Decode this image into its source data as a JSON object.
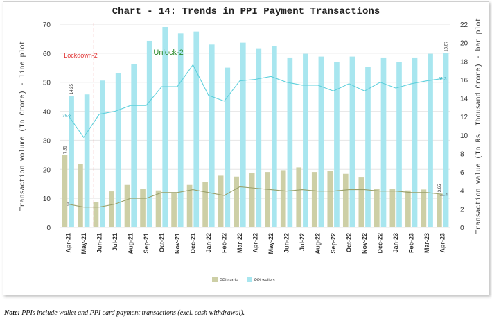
{
  "chart_data": {
    "type": "bar",
    "title": "Chart - 14: Trends in PPI Payment Transactions",
    "ylabel_left": "Transaction volume (In Crore) - line plot",
    "ylabel_right": "Transaction value (In Rs. Thousand Crore) - bar plot",
    "ylim_left": [
      0,
      70
    ],
    "ylim_right": [
      0,
      22
    ],
    "left_ticks": [
      "0",
      "10",
      "20",
      "30",
      "40",
      "50",
      "60",
      "70"
    ],
    "right_ticks": [
      "0",
      "2",
      "4",
      "6",
      "8",
      "10",
      "12",
      "14",
      "16",
      "18",
      "20",
      "22"
    ],
    "categories": [
      "Apr-21",
      "May-21",
      "Jun-21",
      "Jul-21",
      "Aug-21",
      "Sep-21",
      "Oct-21",
      "Nov-21",
      "Dec-21",
      "Jan-22",
      "Feb-22",
      "Mar-22",
      "Apr-22",
      "May-22",
      "Jun-22",
      "Jul-22",
      "Aug-22",
      "Sep-22",
      "Oct-22",
      "Nov-22",
      "Dec-22",
      "Jan-23",
      "Feb-23",
      "Mar-23",
      "Apr-23"
    ],
    "bar_series": [
      {
        "name": "PPI cards",
        "color": "#cdcfa6",
        "values": [
          7.81,
          6.9,
          2.75,
          3.9,
          4.6,
          4.2,
          4.0,
          3.8,
          4.6,
          4.9,
          5.6,
          5.5,
          5.9,
          6.0,
          6.2,
          6.5,
          6.0,
          6.1,
          5.8,
          5.4,
          4.2,
          4.2,
          4.0,
          4.1,
          3.65
        ]
      },
      {
        "name": "PPI wallets",
        "color": "#a8e6ef",
        "values": [
          14.25,
          14.4,
          15.9,
          16.7,
          17.7,
          20.2,
          21.7,
          21.0,
          21.2,
          19.8,
          17.3,
          20.0,
          19.4,
          19.6,
          18.4,
          18.8,
          18.5,
          17.9,
          18.5,
          17.4,
          18.4,
          17.9,
          18.4,
          18.8,
          18.87
        ]
      }
    ],
    "line_series": [
      {
        "name": "PPI wallets",
        "color": "#5fd0dc",
        "values": [
          38.6,
          31.0,
          39.0,
          40.0,
          42.0,
          42.0,
          48.5,
          48.5,
          56.0,
          45.5,
          43.5,
          50.5,
          51.0,
          52.0,
          50.0,
          49.0,
          49.0,
          47.0,
          49.5,
          47.0,
          50.0,
          48.0,
          49.5,
          50.5,
          51.3
        ]
      },
      {
        "name": "PPI cards",
        "color": "#9aa06a",
        "values": [
          8.0,
          7.0,
          7.0,
          8.0,
          10.0,
          10.0,
          12.0,
          12.0,
          13.0,
          12.0,
          11.0,
          14.0,
          13.5,
          13.0,
          12.5,
          13.0,
          12.5,
          12.5,
          13.0,
          13.0,
          12.5,
          12.5,
          12.0,
          12.0,
          11.4
        ]
      }
    ],
    "data_labels": {
      "bar_cards_first": "7.81",
      "bar_wallets_first": "14.25",
      "bar_cards_last": "3.65",
      "bar_wallets_last": "18.87",
      "line_wallets_first": "38.6",
      "line_cards_first": "8",
      "line_wallets_last": "51.3",
      "line_cards_last": "11.4"
    },
    "annotations": [
      {
        "text": "Lockdown-2",
        "color": "#e03030"
      },
      {
        "text": "Unlock-2",
        "color": "#2a8a2a"
      }
    ],
    "legend": {
      "placement": "bottom",
      "items": [
        "PPI cards",
        "PPI wallets"
      ]
    }
  },
  "note": {
    "bold": "Note:",
    "text": " PPIs include wallet and PPI card payment transactions (excl. cash withdrawal)."
  }
}
